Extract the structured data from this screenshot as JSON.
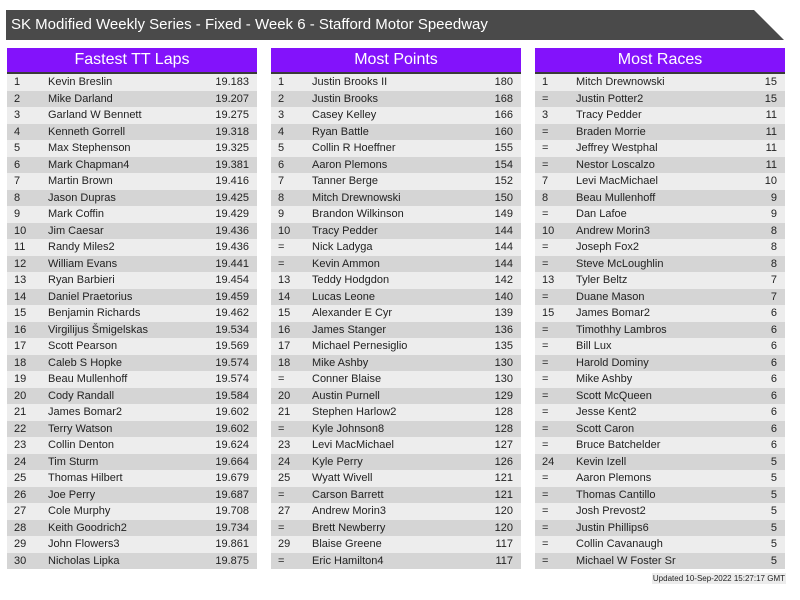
{
  "title": "SK Modified Weekly Series - Fixed - Week 6 - Stafford Motor Speedway",
  "colors": {
    "header": "#8312fb",
    "title_bar": "#4a4a4a",
    "row_light": "#ededed",
    "row_dark": "#d5d5d5"
  },
  "tables": [
    {
      "heading": "Fastest TT Laps",
      "rows": [
        [
          "1",
          "Kevin Breslin",
          "19.183"
        ],
        [
          "2",
          "Mike Darland",
          "19.207"
        ],
        [
          "3",
          "Garland W Bennett",
          "19.275"
        ],
        [
          "4",
          "Kenneth Gorrell",
          "19.318"
        ],
        [
          "5",
          "Max Stephenson",
          "19.325"
        ],
        [
          "6",
          "Mark Chapman4",
          "19.381"
        ],
        [
          "7",
          "Martin Brown",
          "19.416"
        ],
        [
          "8",
          "Jason Dupras",
          "19.425"
        ],
        [
          "9",
          "Mark Coffin",
          "19.429"
        ],
        [
          "10",
          "Jim Caesar",
          "19.436"
        ],
        [
          "11",
          "Randy Miles2",
          "19.436"
        ],
        [
          "12",
          "William Evans",
          "19.441"
        ],
        [
          "13",
          "Ryan Barbieri",
          "19.454"
        ],
        [
          "14",
          "Daniel Praetorius",
          "19.459"
        ],
        [
          "15",
          "Benjamin Richards",
          "19.462"
        ],
        [
          "16",
          "Virgilijus Šmigelskas",
          "19.534"
        ],
        [
          "17",
          "Scott Pearson",
          "19.569"
        ],
        [
          "18",
          "Caleb S Hopke",
          "19.574"
        ],
        [
          "19",
          "Beau Mullenhoff",
          "19.574"
        ],
        [
          "20",
          "Cody Randall",
          "19.584"
        ],
        [
          "21",
          "James Bomar2",
          "19.602"
        ],
        [
          "22",
          "Terry Watson",
          "19.602"
        ],
        [
          "23",
          "Collin Denton",
          "19.624"
        ],
        [
          "24",
          "Tim Sturm",
          "19.664"
        ],
        [
          "25",
          "Thomas Hilbert",
          "19.679"
        ],
        [
          "26",
          "Joe Perry",
          "19.687"
        ],
        [
          "27",
          "Cole Murphy",
          "19.708"
        ],
        [
          "28",
          "Keith Goodrich2",
          "19.734"
        ],
        [
          "29",
          "John Flowers3",
          "19.861"
        ],
        [
          "30",
          "Nicholas Lipka",
          "19.875"
        ]
      ]
    },
    {
      "heading": "Most Points",
      "rows": [
        [
          "1",
          "Justin Brooks II",
          "180"
        ],
        [
          "2",
          "Justin Brooks",
          "168"
        ],
        [
          "3",
          "Casey Kelley",
          "166"
        ],
        [
          "4",
          "Ryan Battle",
          "160"
        ],
        [
          "5",
          "Collin R Hoeffner",
          "155"
        ],
        [
          "6",
          "Aaron Plemons",
          "154"
        ],
        [
          "7",
          "Tanner Berge",
          "152"
        ],
        [
          "8",
          "Mitch Drewnowski",
          "150"
        ],
        [
          "9",
          "Brandon Wilkinson",
          "149"
        ],
        [
          "10",
          "Tracy Pedder",
          "144"
        ],
        [
          "=",
          "Nick Ladyga",
          "144"
        ],
        [
          "=",
          "Kevin Ammon",
          "144"
        ],
        [
          "13",
          "Teddy Hodgdon",
          "142"
        ],
        [
          "14",
          "Lucas Leone",
          "140"
        ],
        [
          "15",
          "Alexander E Cyr",
          "139"
        ],
        [
          "16",
          "James Stanger",
          "136"
        ],
        [
          "17",
          "Michael Pernesiglio",
          "135"
        ],
        [
          "18",
          "Mike Ashby",
          "130"
        ],
        [
          "=",
          "Conner Blaise",
          "130"
        ],
        [
          "20",
          "Austin Purnell",
          "129"
        ],
        [
          "21",
          "Stephen Harlow2",
          "128"
        ],
        [
          "=",
          "Kyle Johnson8",
          "128"
        ],
        [
          "23",
          "Levi MacMichael",
          "127"
        ],
        [
          "24",
          "Kyle Perry",
          "126"
        ],
        [
          "25",
          "Wyatt Wivell",
          "121"
        ],
        [
          "=",
          "Carson Barrett",
          "121"
        ],
        [
          "27",
          "Andrew Morin3",
          "120"
        ],
        [
          "=",
          "Brett Newberry",
          "120"
        ],
        [
          "29",
          "Blaise Greene",
          "117"
        ],
        [
          "=",
          "Eric Hamilton4",
          "117"
        ]
      ]
    },
    {
      "heading": "Most Races",
      "rows": [
        [
          "1",
          "Mitch Drewnowski",
          "15"
        ],
        [
          "=",
          "Justin Potter2",
          "15"
        ],
        [
          "3",
          "Tracy Pedder",
          "11"
        ],
        [
          "=",
          "Braden Morrie",
          "11"
        ],
        [
          "=",
          "Jeffrey Westphal",
          "11"
        ],
        [
          "=",
          "Nestor Loscalzo",
          "11"
        ],
        [
          "7",
          "Levi MacMichael",
          "10"
        ],
        [
          "8",
          "Beau Mullenhoff",
          "9"
        ],
        [
          "=",
          "Dan Lafoe",
          "9"
        ],
        [
          "10",
          "Andrew Morin3",
          "8"
        ],
        [
          "=",
          "Joseph Fox2",
          "8"
        ],
        [
          "=",
          "Steve McLoughlin",
          "8"
        ],
        [
          "13",
          "Tyler Beltz",
          "7"
        ],
        [
          "=",
          "Duane Mason",
          "7"
        ],
        [
          "15",
          "James Bomar2",
          "6"
        ],
        [
          "=",
          "Timothhy Lambros",
          "6"
        ],
        [
          "=",
          "Bill Lux",
          "6"
        ],
        [
          "=",
          "Harold Dominy",
          "6"
        ],
        [
          "=",
          "Mike Ashby",
          "6"
        ],
        [
          "=",
          "Scott McQueen",
          "6"
        ],
        [
          "=",
          "Jesse Kent2",
          "6"
        ],
        [
          "=",
          "Scott Caron",
          "6"
        ],
        [
          "=",
          "Bruce Batchelder",
          "6"
        ],
        [
          "24",
          "Kevin Izell",
          "5"
        ],
        [
          "=",
          "Aaron Plemons",
          "5"
        ],
        [
          "=",
          "Thomas Cantillo",
          "5"
        ],
        [
          "=",
          "Josh Prevost2",
          "5"
        ],
        [
          "=",
          "Justin Phillips6",
          "5"
        ],
        [
          "=",
          "Collin Cavanaugh",
          "5"
        ],
        [
          "=",
          "Michael W Foster Sr",
          "5"
        ]
      ]
    }
  ],
  "footer": "Updated 10-Sep-2022 15:27:17 GMT"
}
